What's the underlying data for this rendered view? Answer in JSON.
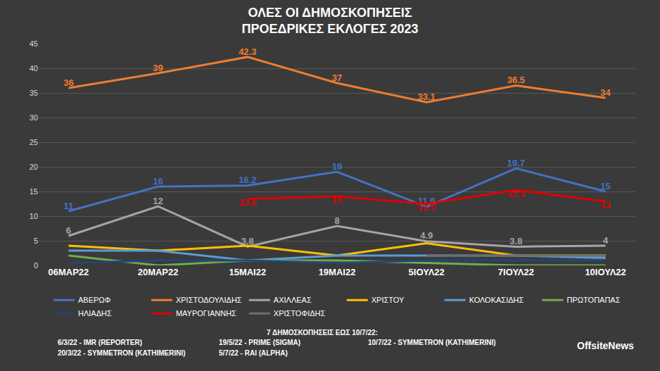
{
  "chart_data": {
    "type": "line",
    "title": [
      "ΟΛΕΣ ΟΙ ΔΗΜΟΣΚΟΠΗΣΕΙΣ",
      "ΠΡΟΕΔΡΙΚΕΣ ΕΚΛΟΓΕΣ 2023"
    ],
    "categories": [
      "06ΜΑΡ22",
      "20ΜΑΡ22",
      "15ΜΑΙ22",
      "19ΜΑΙ22",
      "5ΙΟΥΛ22",
      "7ΙΟΥΛ22",
      "10ΙΟΥΛ22"
    ],
    "series": [
      {
        "name": "ΑΒΕΡΩΦ",
        "color": "#4472c4",
        "values": [
          11,
          16,
          16.2,
          19,
          11.9,
          19.7,
          15
        ],
        "data_labels": true
      },
      {
        "name": "ΧΡΙΣΤΟΔΟΥΛΙΔΗΣ",
        "color": "#ed7d31",
        "values": [
          36,
          39,
          42.3,
          37,
          33.1,
          36.5,
          34
        ],
        "data_labels": true
      },
      {
        "name": "ΑΧΙΛΛΕΑΣ",
        "color": "#a5a5a5",
        "values": [
          6,
          12,
          3.8,
          8,
          4.9,
          3.8,
          4
        ],
        "data_labels": true
      },
      {
        "name": "ΧΡΙΣΤΟΥ",
        "color": "#ffc000",
        "values": [
          4,
          3,
          4,
          2,
          4.5,
          2,
          2
        ],
        "data_labels": false
      },
      {
        "name": "ΚΟΛΟΚΑΣΙΔΗΣ",
        "color": "#5b9bd5",
        "values": [
          3,
          3,
          1,
          2,
          2,
          2,
          1.5
        ],
        "data_labels": false
      },
      {
        "name": "ΠΡΩΤΟΠΑΠΑΣ",
        "color": "#70ad47",
        "values": [
          2,
          0,
          1,
          1,
          0.5,
          0,
          0
        ],
        "data_labels": false
      },
      {
        "name": "ΗΛΙΑΔΗΣ",
        "color": "#264478",
        "values": [
          0.5,
          1,
          1,
          0.5,
          1,
          1,
          1
        ],
        "data_labels": false
      },
      {
        "name": "ΜΑΥΡΟΓΙΑΝΝΗΣ",
        "color": "#e00000",
        "values": [
          null,
          null,
          13.5,
          14,
          12.5,
          15.3,
          13
        ],
        "data_labels": true
      },
      {
        "name": "ΧΡΙΣΤΟΦΙΔΗΣ",
        "color": "#6e6e6e",
        "values": [
          null,
          null,
          null,
          null,
          2,
          2,
          2
        ],
        "data_labels": false
      }
    ],
    "ylim": [
      0,
      45
    ],
    "yticks": [
      0,
      5,
      10,
      15,
      20,
      25,
      30,
      35,
      40,
      45
    ],
    "grid": true,
    "legend": "bottom",
    "footer": {
      "heading": "7 ΔΗΜΟΣΚΟΠΗΣΕΙΣ ΕΩΣ 10/7/22:",
      "sources": [
        "6/3/22 - IMR (REPORTER)",
        "20/3/22 - SYMMETRON (KATHIMERINI)",
        "19/5/22 - PRIME (SIGMA)",
        "5/7/22 - RAI (ALPHA)",
        "10/7/22 - SYMMETRON (KATHIMERINI)"
      ],
      "brand": "OffsiteNews"
    }
  }
}
